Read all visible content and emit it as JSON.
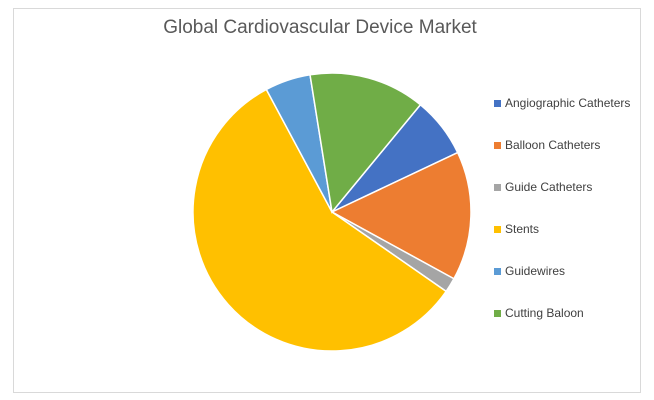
{
  "chart_data": {
    "type": "pie",
    "title": "Global Cardiovascular Device Market",
    "legend_position": "right",
    "slices": [
      {
        "label": "Angiographic Catheters",
        "value": 7.0,
        "color": "#4472C4"
      },
      {
        "label": "Balloon Catheters",
        "value": 15.0,
        "color": "#ED7D31"
      },
      {
        "label": "Guide Catheters",
        "value": 1.7,
        "color": "#A5A5A5"
      },
      {
        "label": "Stents",
        "value": 57.5,
        "color": "#FFC000"
      },
      {
        "label": "Guidewires",
        "value": 5.3,
        "color": "#5B9BD5"
      },
      {
        "label": "Cutting Baloon",
        "value": 13.5,
        "color": "#70AD47"
      }
    ]
  }
}
